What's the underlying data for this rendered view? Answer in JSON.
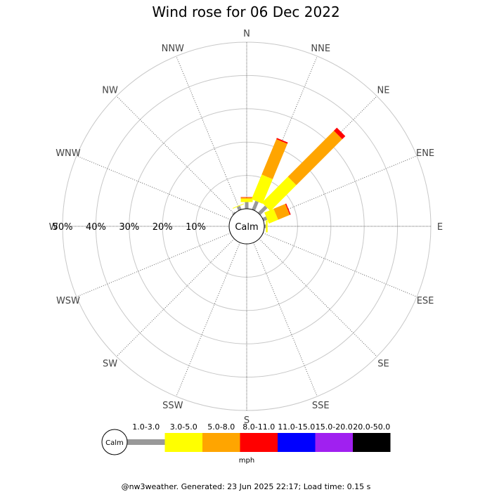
{
  "chart_data": {
    "type": "windrose",
    "title": "Wind rose for 06 Dec 2022",
    "directions": [
      "N",
      "NNE",
      "NE",
      "ENE",
      "E",
      "ESE",
      "SE",
      "SSE",
      "S",
      "SSW",
      "SW",
      "WSW",
      "W",
      "WNW",
      "NW",
      "NNW"
    ],
    "radial_ticks": [
      "10%",
      "20%",
      "30%",
      "40%",
      "50%"
    ],
    "radial_max": 50,
    "calm_label": "Calm",
    "unit": "mph",
    "bins": [
      {
        "range": "1.0-3.0",
        "color": "#999999"
      },
      {
        "range": "3.0-5.0",
        "color": "#ffff00"
      },
      {
        "range": "5.0-8.0",
        "color": "#ffa500"
      },
      {
        "range": "8.0-11.0",
        "color": "#ff0000"
      },
      {
        "range": "11.0-15.0",
        "color": "#0000ff"
      },
      {
        "range": "15.0-20.0",
        "color": "#a020f0"
      },
      {
        "range": "20.0-50.0",
        "color": "#000000"
      }
    ],
    "series": [
      {
        "direction": "N",
        "values": [
          2.0,
          1.0,
          0.4,
          0.1,
          0,
          0,
          0
        ]
      },
      {
        "direction": "NNE",
        "values": [
          2.8,
          8.0,
          11.5,
          0.4,
          0,
          0,
          0
        ]
      },
      {
        "direction": "NE",
        "values": [
          3.0,
          11.0,
          19.5,
          1.3,
          0,
          0,
          0
        ]
      },
      {
        "direction": "ENE",
        "values": [
          1.2,
          3.0,
          3.8,
          0.3,
          0,
          0,
          0
        ]
      },
      {
        "direction": "E",
        "values": [
          0.5,
          0.5,
          0,
          0,
          0,
          0,
          0
        ]
      },
      {
        "direction": "NNW",
        "values": [
          1.2,
          0.2,
          0,
          0,
          0,
          0,
          0
        ]
      },
      {
        "direction": "NW",
        "values": [
          0.4,
          0,
          0,
          0,
          0,
          0,
          0
        ]
      }
    ]
  },
  "footer": "@nw3weather. Generated: 23 Jun 2025 22:17; Load time: 0.15 s"
}
